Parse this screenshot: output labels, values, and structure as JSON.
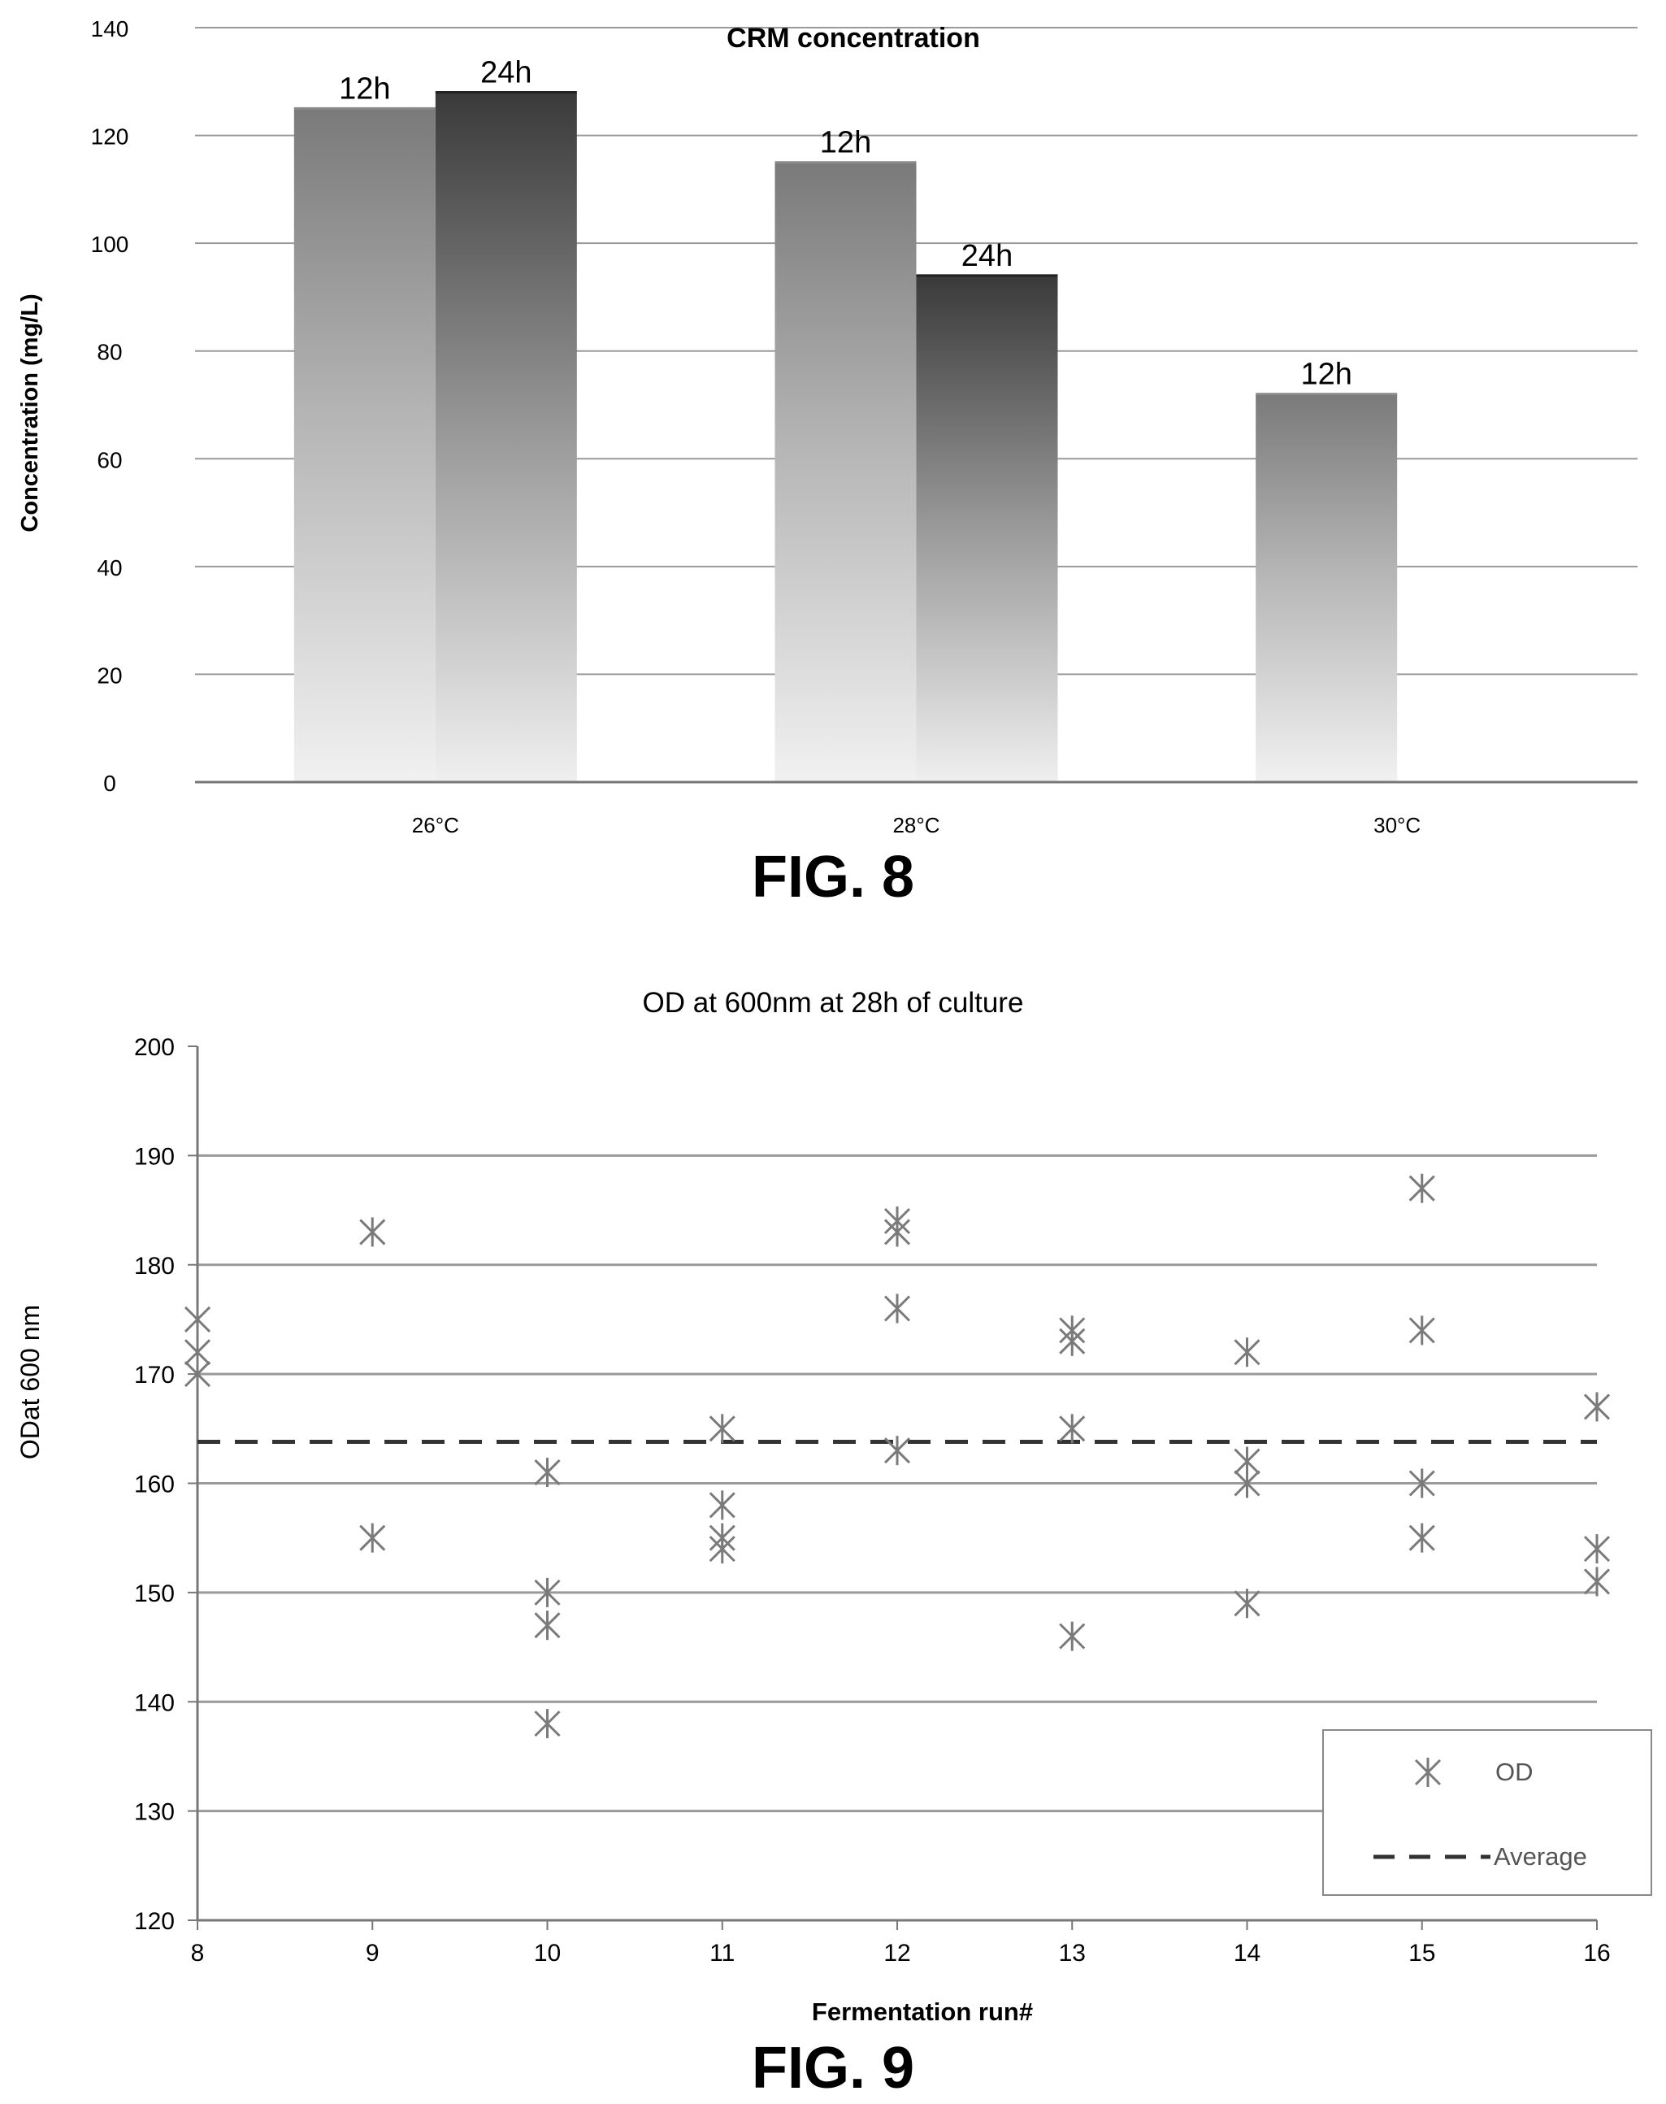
{
  "chart_data": [
    {
      "type": "bar",
      "title": "CRM concentration",
      "xlabel": "",
      "ylabel": "Concentration (mg/L)",
      "ylim": [
        0,
        140
      ],
      "yticks": [
        0,
        20,
        40,
        60,
        80,
        100,
        120,
        140
      ],
      "categories": [
        "26°C",
        "28°C",
        "30°C"
      ],
      "series": [
        {
          "name": "12h",
          "values": [
            125,
            115,
            72
          ]
        },
        {
          "name": "24h",
          "values": [
            128,
            94,
            null
          ]
        }
      ],
      "bar_labels": [
        "12h",
        "24h"
      ],
      "grid": true,
      "figure_label": "FIG. 8"
    },
    {
      "type": "scatter",
      "title": "OD at 600nm at 28h of culture",
      "xlabel": "Fermentation run#",
      "ylabel": "ODat 600 nm",
      "xlim": [
        8,
        16
      ],
      "ylim": [
        120,
        200
      ],
      "xticks": [
        8,
        9,
        10,
        11,
        12,
        13,
        14,
        15,
        16
      ],
      "yticks": [
        120,
        130,
        140,
        150,
        160,
        170,
        180,
        190,
        200
      ],
      "series": [
        {
          "name": "OD",
          "points": [
            [
              8,
              175
            ],
            [
              8,
              172
            ],
            [
              8,
              170
            ],
            [
              9,
              183
            ],
            [
              9,
              155
            ],
            [
              10,
              161
            ],
            [
              10,
              150
            ],
            [
              10,
              147
            ],
            [
              10,
              138
            ],
            [
              11,
              165
            ],
            [
              11,
              158
            ],
            [
              11,
              155
            ],
            [
              11,
              154
            ],
            [
              12,
              184
            ],
            [
              12,
              183
            ],
            [
              12,
              176
            ],
            [
              12,
              163
            ],
            [
              13,
              174
            ],
            [
              13,
              173
            ],
            [
              13,
              165
            ],
            [
              13,
              146
            ],
            [
              14,
              172
            ],
            [
              14,
              162
            ],
            [
              14,
              160
            ],
            [
              14,
              149
            ],
            [
              15,
              187
            ],
            [
              15,
              174
            ],
            [
              15,
              160
            ],
            [
              15,
              155
            ],
            [
              16,
              167
            ],
            [
              16,
              154
            ],
            [
              16,
              151
            ]
          ]
        },
        {
          "name": "Average",
          "value": 163.8,
          "style": "dashed"
        }
      ],
      "legend": {
        "position": "bottom-right",
        "entries": [
          "OD",
          "Average"
        ]
      },
      "grid": true,
      "figure_label": "FIG. 9"
    }
  ]
}
